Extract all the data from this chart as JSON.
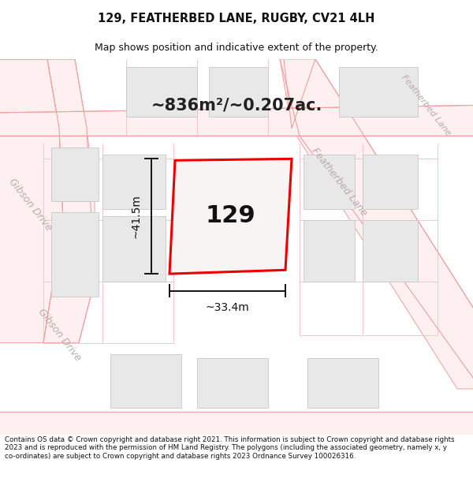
{
  "title": "129, FEATHERBED LANE, RUGBY, CV21 4LH",
  "subtitle": "Map shows position and indicative extent of the property.",
  "area_text": "~836m²/~0.207ac.",
  "dim_height": "~41.5m",
  "dim_width": "~33.4m",
  "property_label": "129",
  "footer": "Contains OS data © Crown copyright and database right 2021. This information is subject to Crown copyright and database rights 2023 and is reproduced with the permission of HM Land Registry. The polygons (including the associated geometry, namely x, y co-ordinates) are subject to Crown copyright and database rights 2023 Ordnance Survey 100026316.",
  "map_bg": "#f9f8f7",
  "road_line_color": "#f0a0a0",
  "road_fill_color": "#fef0f0",
  "building_fill": "#e8e8e8",
  "building_edge": "#c8c8c8",
  "parcel_line": "#f5c0c0",
  "property_edge": "#ee0000",
  "property_fill": "#f8f4f4",
  "dim_color": "#111111",
  "label_color": "#bbaaaa",
  "title_color": "#111111",
  "footer_color": "#111111",
  "area_text_color": "#222222"
}
